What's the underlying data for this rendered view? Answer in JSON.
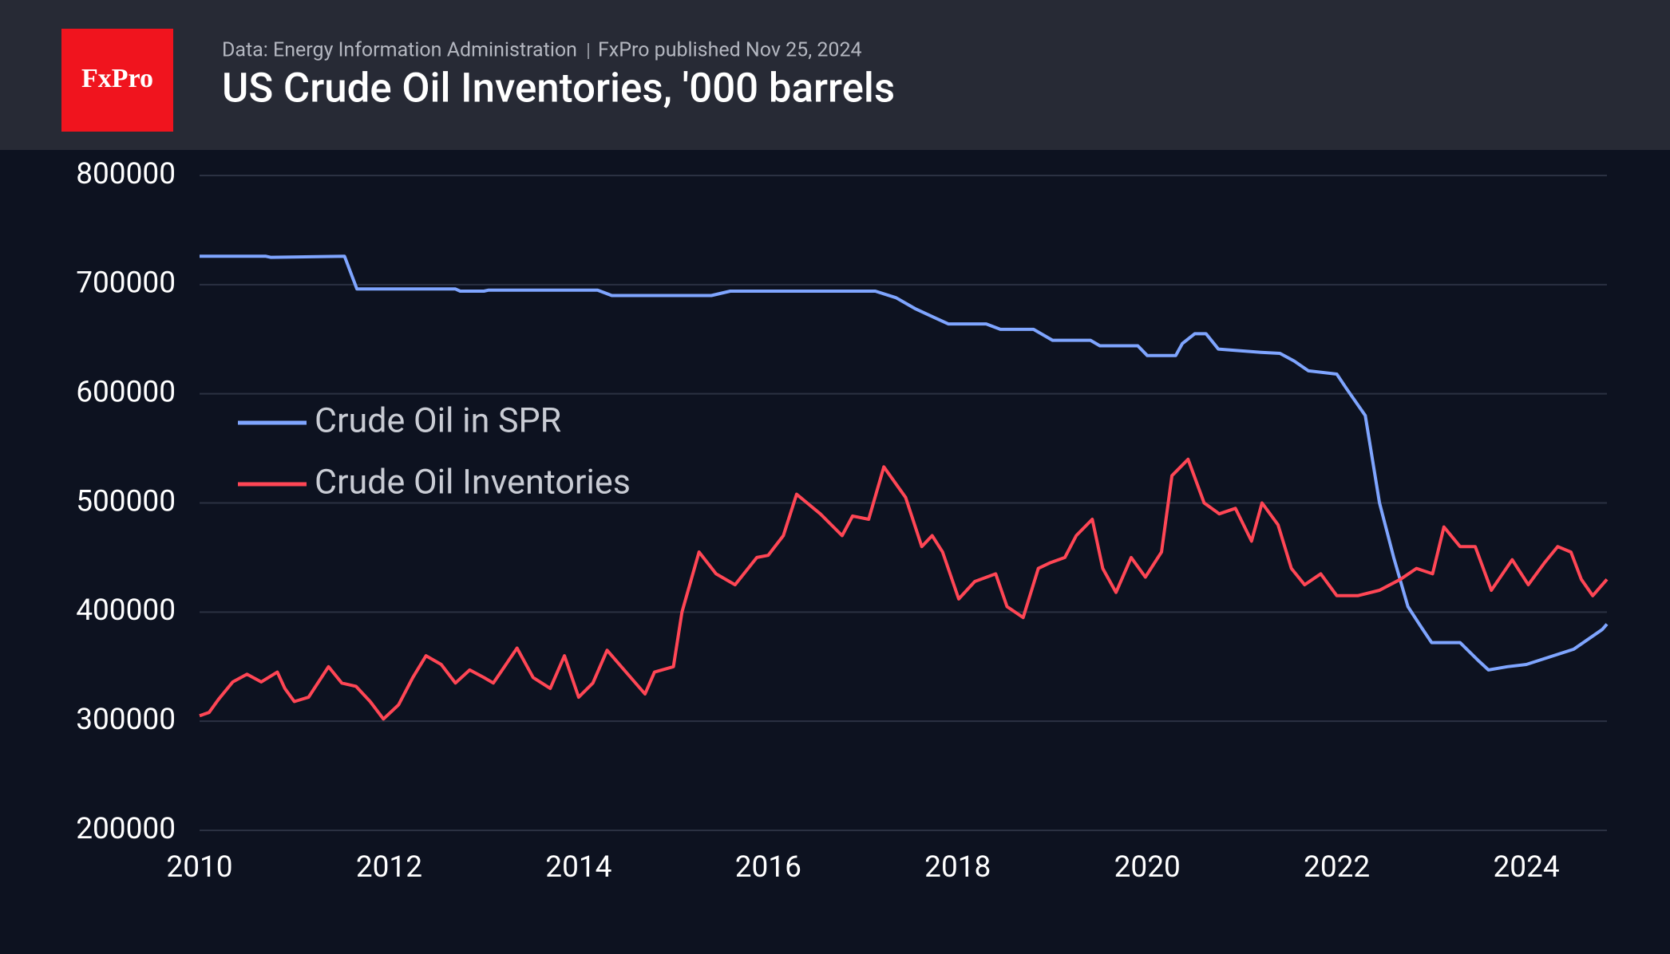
{
  "source": "Data: Energy Information Administration",
  "published": "FxPro published Nov 25, 2024",
  "logo": "FxPro",
  "chart_data": {
    "type": "line",
    "title": "US Crude Oil Inventories, '000 barrels",
    "xlim": [
      2010,
      2024.85
    ],
    "xticks": [
      2010,
      2012,
      2014,
      2016,
      2018,
      2020,
      2022,
      2024
    ],
    "ylim": [
      200000,
      800000
    ],
    "yticks": [
      200000,
      300000,
      400000,
      500000,
      600000,
      700000,
      800000
    ],
    "grid": true,
    "legend": "left",
    "series": [
      {
        "name": "Crude Oil in SPR",
        "color": "#7fa5ff",
        "x": [
          2010,
          2010.7,
          2010.75,
          2011.53,
          2011.66,
          2012.7,
          2012.75,
          2013.0,
          2013.05,
          2014.2,
          2014.35,
          2015.4,
          2015.6,
          2017.13,
          2017.35,
          2017.55,
          2017.75,
          2017.9,
          2018.3,
          2018.45,
          2018.8,
          2019.0,
          2019.4,
          2019.5,
          2019.9,
          2020.0,
          2020.3,
          2020.37,
          2020.5,
          2020.62,
          2020.75,
          2021.2,
          2021.4,
          2021.55,
          2021.7,
          2022.0,
          2022.1,
          2022.3,
          2022.45,
          2022.6,
          2022.75,
          2022.9,
          2023.0,
          2023.3,
          2023.5,
          2023.6,
          2023.8,
          2024.0,
          2024.5,
          2024.8,
          2024.85
        ],
        "values": [
          726000,
          726000,
          725000,
          726000,
          696000,
          696000,
          694000,
          694000,
          695000,
          695000,
          690000,
          690000,
          694000,
          694000,
          688000,
          678000,
          670000,
          664000,
          664000,
          659000,
          659000,
          649000,
          649000,
          644000,
          644000,
          635000,
          635000,
          646000,
          655000,
          655000,
          641000,
          638000,
          637000,
          630000,
          621000,
          618000,
          605000,
          580000,
          500000,
          450000,
          405000,
          385000,
          372000,
          372000,
          355000,
          347000,
          350000,
          352000,
          366000,
          384000,
          389000
        ]
      },
      {
        "name": "Crude Oil Inventories",
        "color": "#ff4655",
        "x": [
          2010,
          2010.1,
          2010.2,
          2010.35,
          2010.5,
          2010.65,
          2010.82,
          2010.9,
          2011.0,
          2011.15,
          2011.36,
          2011.5,
          2011.65,
          2011.8,
          2011.94,
          2012.1,
          2012.25,
          2012.39,
          2012.55,
          2012.7,
          2012.85,
          2013.0,
          2013.1,
          2013.35,
          2013.52,
          2013.7,
          2013.85,
          2014.0,
          2014.15,
          2014.3,
          2014.5,
          2014.7,
          2014.8,
          2015.0,
          2015.09,
          2015.27,
          2015.45,
          2015.65,
          2015.88,
          2016.0,
          2016.16,
          2016.3,
          2016.55,
          2016.78,
          2016.89,
          2017.06,
          2017.22,
          2017.45,
          2017.62,
          2017.73,
          2017.84,
          2018.01,
          2018.18,
          2018.4,
          2018.52,
          2018.69,
          2018.85,
          2018.97,
          2019.13,
          2019.25,
          2019.42,
          2019.53,
          2019.67,
          2019.83,
          2019.98,
          2020.15,
          2020.26,
          2020.43,
          2020.6,
          2020.76,
          2020.93,
          2021.1,
          2021.21,
          2021.38,
          2021.52,
          2021.66,
          2021.83,
          2022.0,
          2022.22,
          2022.45,
          2022.67,
          2022.84,
          2023.01,
          2023.13,
          2023.3,
          2023.46,
          2023.63,
          2023.85,
          2024.02,
          2024.19,
          2024.33,
          2024.47,
          2024.58,
          2024.7,
          2024.85
        ],
        "values": [
          305000,
          308000,
          320000,
          336000,
          343000,
          336000,
          345000,
          330000,
          318000,
          322000,
          350000,
          335000,
          332000,
          318000,
          302000,
          315000,
          340000,
          360000,
          352000,
          335000,
          347000,
          340000,
          335000,
          367000,
          340000,
          330000,
          360000,
          322000,
          335000,
          365000,
          345000,
          325000,
          345000,
          350000,
          400000,
          455000,
          435000,
          425000,
          450000,
          452000,
          470000,
          508000,
          490000,
          470000,
          488000,
          485000,
          533000,
          505000,
          460000,
          470000,
          455000,
          412000,
          428000,
          435000,
          405000,
          395000,
          440000,
          445000,
          450000,
          470000,
          485000,
          440000,
          418000,
          450000,
          432000,
          455000,
          525000,
          540000,
          500000,
          490000,
          495000,
          465000,
          500000,
          480000,
          440000,
          425000,
          435000,
          415000,
          415000,
          420000,
          430000,
          440000,
          435000,
          478000,
          460000,
          460000,
          420000,
          448000,
          425000,
          445000,
          460000,
          455000,
          430000,
          415000,
          430000
        ]
      }
    ]
  }
}
